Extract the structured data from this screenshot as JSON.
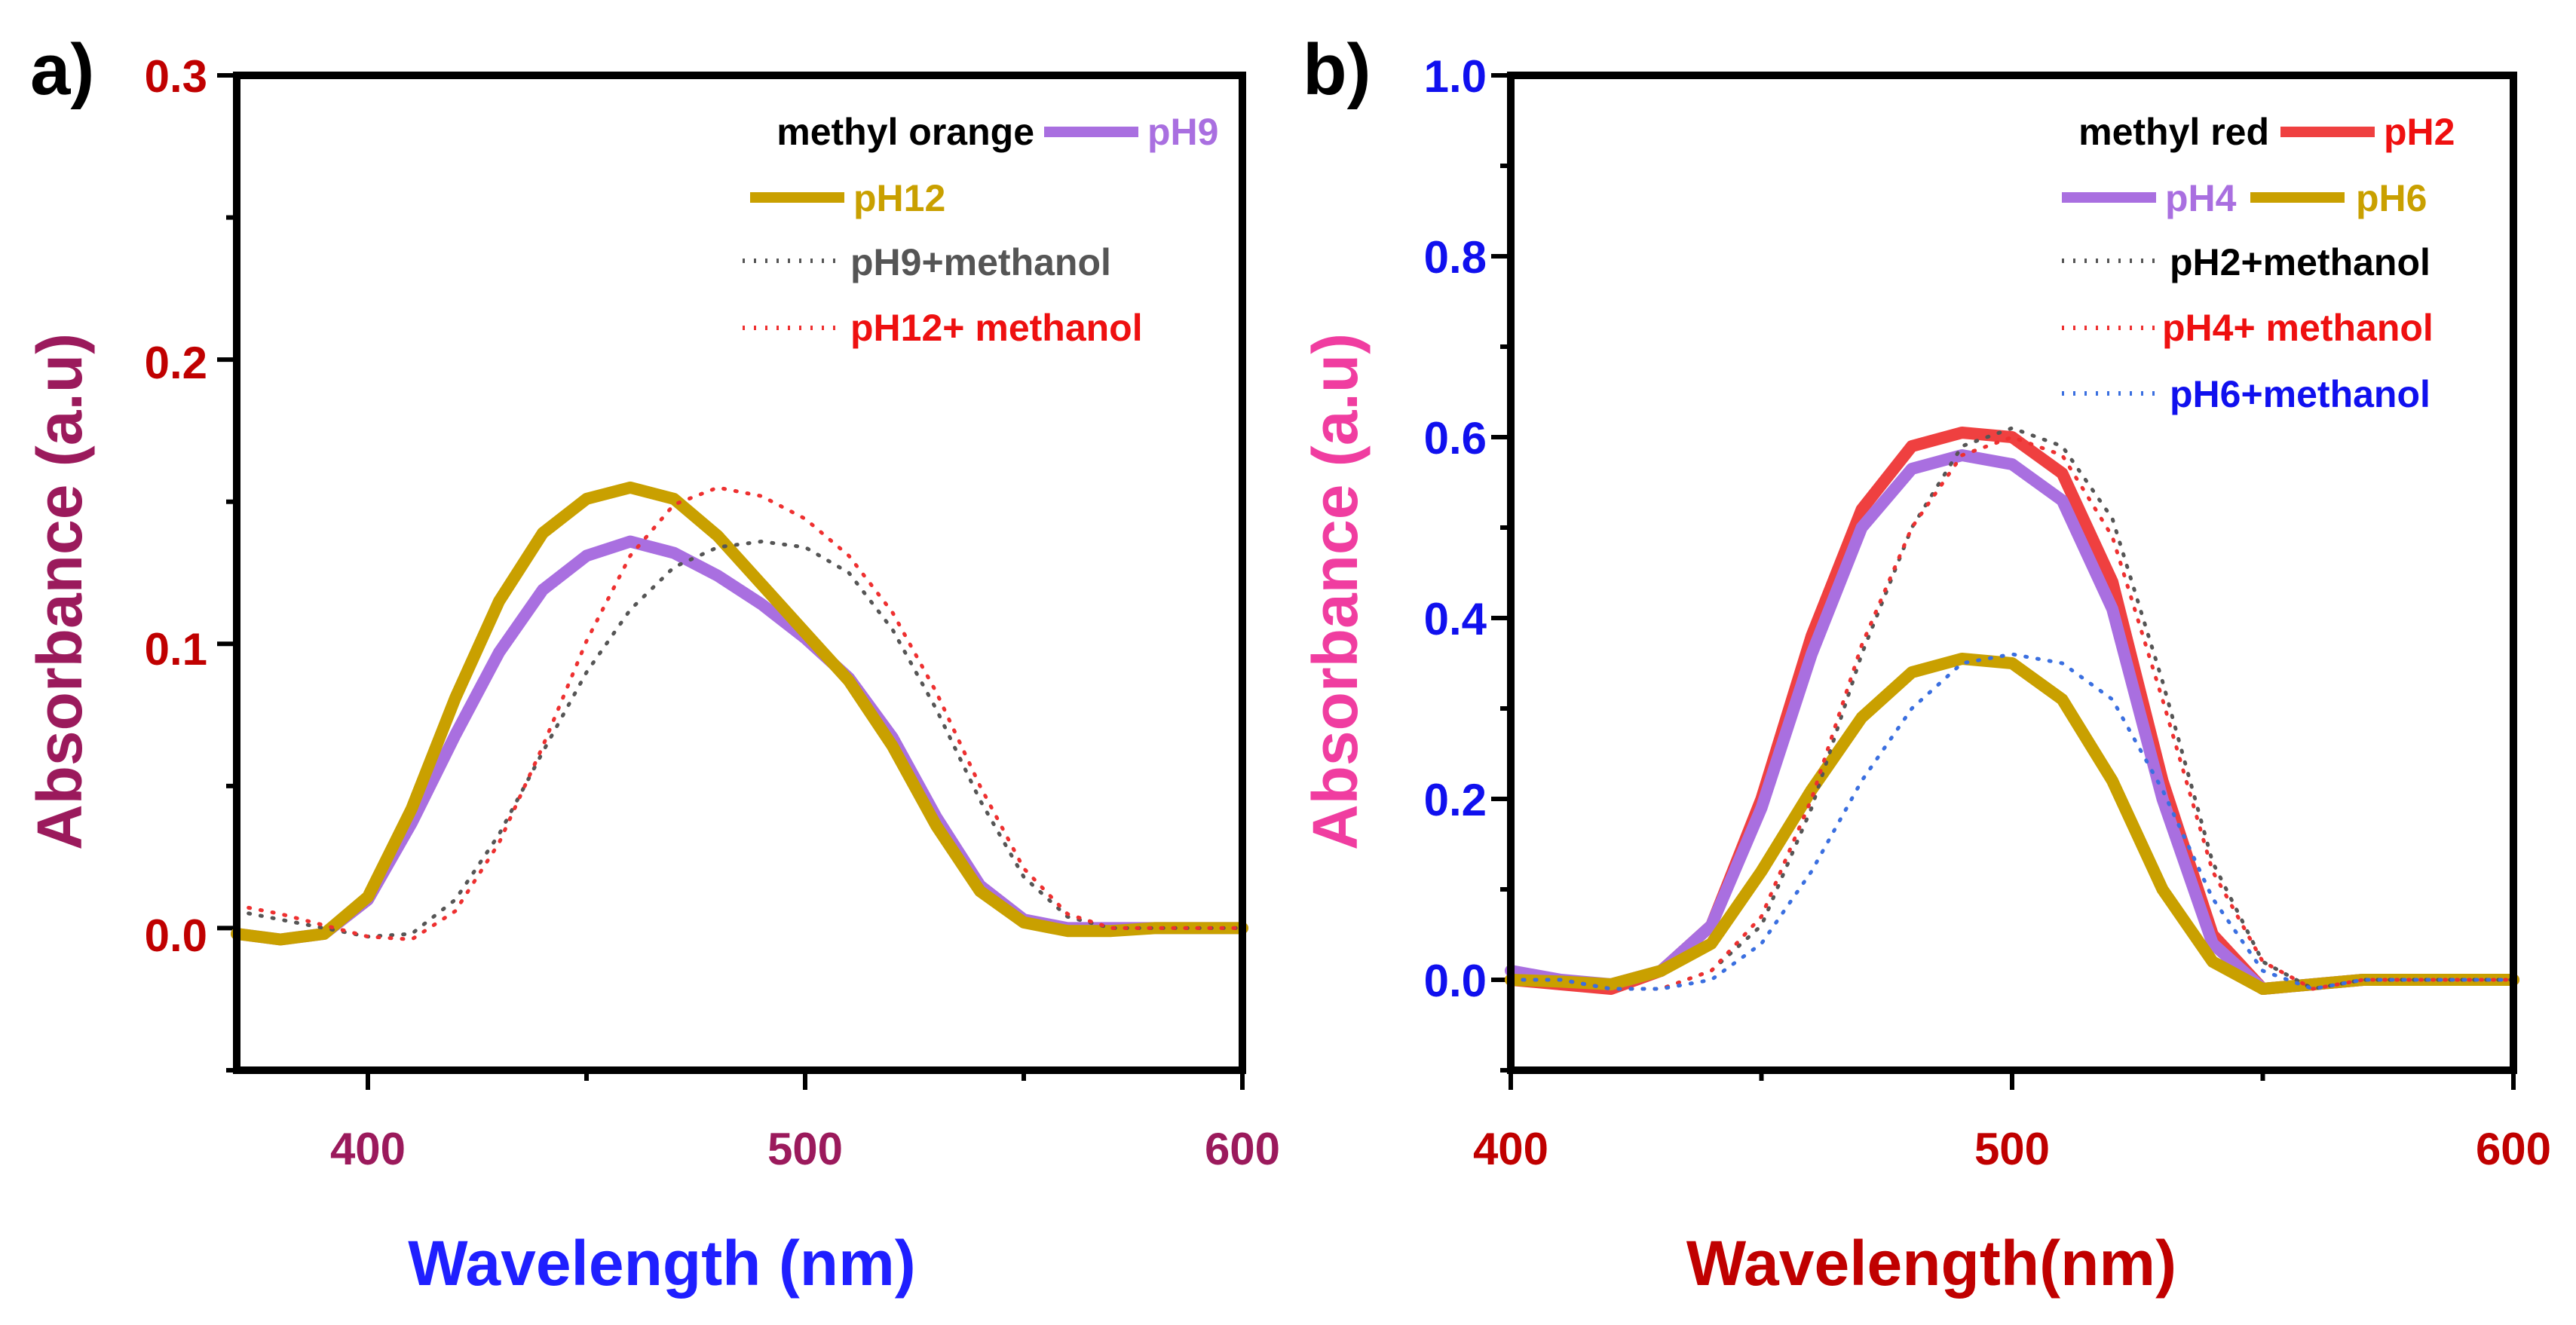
{
  "chart_data": [
    {
      "panel_label": "a)",
      "type": "line",
      "xlabel": "Wavelength (nm)",
      "ylabel": "Absorbance (a.u)",
      "xlim": [
        370,
        600
      ],
      "ylim": [
        -0.05,
        0.3
      ],
      "xticks": [
        400,
        500,
        600
      ],
      "xtick_labels": [
        "400",
        "500",
        "600"
      ],
      "yticks": [
        0.0,
        0.1,
        0.2,
        0.3
      ],
      "ytick_labels": [
        "0.0",
        "0.1",
        "0.2",
        "0.3"
      ],
      "grid": false,
      "legend_placement": "top-right",
      "legend_title": "methyl orange",
      "colors": {
        "xlabel": "#1f1fff",
        "ylabel": "#9b1a5c",
        "xticks": "#9b1a5c",
        "yticks": "#c00000"
      },
      "series": [
        {
          "name": "pH9",
          "color": "#a96fe0",
          "style": "solid",
          "x": [
            370,
            380,
            390,
            400,
            410,
            420,
            430,
            440,
            450,
            460,
            470,
            480,
            490,
            500,
            510,
            520,
            530,
            540,
            550,
            560,
            570,
            580,
            590,
            600
          ],
          "y": [
            -0.002,
            -0.004,
            -0.002,
            0.01,
            0.037,
            0.068,
            0.097,
            0.119,
            0.131,
            0.136,
            0.132,
            0.124,
            0.114,
            0.102,
            0.088,
            0.067,
            0.039,
            0.015,
            0.003,
            0.0,
            0.0,
            0.0,
            0.0,
            0.0
          ]
        },
        {
          "name": "pH12",
          "color": "#c9a000",
          "style": "solid",
          "x": [
            370,
            380,
            390,
            400,
            410,
            420,
            430,
            440,
            450,
            460,
            470,
            480,
            490,
            500,
            510,
            520,
            530,
            540,
            550,
            560,
            570,
            580,
            590,
            600
          ],
          "y": [
            -0.002,
            -0.004,
            -0.002,
            0.011,
            0.042,
            0.081,
            0.115,
            0.139,
            0.151,
            0.155,
            0.151,
            0.138,
            0.121,
            0.104,
            0.087,
            0.064,
            0.036,
            0.013,
            0.002,
            -0.001,
            -0.001,
            0.0,
            0.0,
            0.0
          ]
        },
        {
          "name": "pH9+methanol",
          "color": "#555555",
          "style": "dotted",
          "x": [
            370,
            380,
            390,
            400,
            410,
            420,
            430,
            440,
            450,
            460,
            470,
            480,
            490,
            500,
            510,
            520,
            530,
            540,
            550,
            560,
            570,
            580,
            590,
            600
          ],
          "y": [
            0.006,
            0.003,
            0.0,
            -0.003,
            -0.002,
            0.01,
            0.033,
            0.062,
            0.09,
            0.112,
            0.127,
            0.134,
            0.136,
            0.134,
            0.125,
            0.105,
            0.077,
            0.045,
            0.018,
            0.004,
            0.0,
            0.0,
            0.0,
            0.0
          ]
        },
        {
          "name": "pH12+ methanol",
          "color": "#ee3030",
          "style": "dotted",
          "x": [
            370,
            380,
            390,
            400,
            410,
            420,
            430,
            440,
            450,
            460,
            470,
            480,
            490,
            500,
            510,
            520,
            530,
            540,
            550,
            560,
            570,
            580,
            590,
            600
          ],
          "y": [
            0.008,
            0.005,
            0.001,
            -0.003,
            -0.004,
            0.006,
            0.03,
            0.064,
            0.101,
            0.131,
            0.149,
            0.155,
            0.152,
            0.144,
            0.131,
            0.111,
            0.083,
            0.05,
            0.021,
            0.005,
            0.0,
            0.0,
            0.0,
            0.0
          ]
        }
      ],
      "legend_labels": {
        "pH9": "pH9",
        "pH12": "pH12",
        "pH9m": "pH9+methanol",
        "pH12m": "pH12+ methanol"
      }
    },
    {
      "panel_label": "b)",
      "type": "line",
      "xlabel": "Wavelength(nm)",
      "ylabel": "Absorbance (a.u)",
      "xlim": [
        400,
        600
      ],
      "ylim": [
        -0.1,
        1.0
      ],
      "xticks": [
        400,
        500,
        600
      ],
      "xtick_labels": [
        "400",
        "500",
        "600"
      ],
      "yticks": [
        0.0,
        0.2,
        0.4,
        0.6,
        0.8,
        1.0
      ],
      "ytick_labels": [
        "0.0",
        "0.2",
        "0.4",
        "0.6",
        "0.8",
        "1.0"
      ],
      "grid": false,
      "legend_placement": "top-right",
      "legend_title": "methyl red",
      "colors": {
        "xlabel": "#c00000",
        "ylabel": "#f03da0",
        "xticks": "#c00000",
        "yticks": "#1010ee"
      },
      "series": [
        {
          "name": "pH2",
          "color": "#ef4040",
          "style": "solid",
          "x": [
            400,
            410,
            420,
            430,
            440,
            450,
            460,
            470,
            480,
            490,
            500,
            510,
            520,
            530,
            540,
            550,
            560,
            570,
            580,
            590,
            600
          ],
          "y": [
            0.0,
            -0.005,
            -0.01,
            0.01,
            0.06,
            0.2,
            0.38,
            0.52,
            0.59,
            0.605,
            0.6,
            0.56,
            0.44,
            0.22,
            0.05,
            -0.01,
            -0.005,
            0.0,
            0.0,
            0.0,
            0.0
          ]
        },
        {
          "name": "pH4",
          "color": "#a96fe0",
          "style": "solid",
          "x": [
            400,
            410,
            420,
            430,
            440,
            450,
            460,
            470,
            480,
            490,
            500,
            510,
            520,
            530,
            540,
            550,
            560,
            570,
            580,
            590,
            600
          ],
          "y": [
            0.01,
            0.0,
            -0.005,
            0.01,
            0.06,
            0.19,
            0.36,
            0.5,
            0.565,
            0.58,
            0.57,
            0.53,
            0.41,
            0.2,
            0.04,
            -0.01,
            -0.005,
            0.0,
            0.0,
            0.0,
            0.0
          ]
        },
        {
          "name": "pH6",
          "color": "#c9a000",
          "style": "solid",
          "x": [
            400,
            410,
            420,
            430,
            440,
            450,
            460,
            470,
            480,
            490,
            500,
            510,
            520,
            530,
            540,
            550,
            560,
            570,
            580,
            590,
            600
          ],
          "y": [
            0.0,
            -0.002,
            -0.005,
            0.01,
            0.04,
            0.12,
            0.21,
            0.29,
            0.34,
            0.355,
            0.35,
            0.31,
            0.22,
            0.1,
            0.02,
            -0.01,
            -0.005,
            0.0,
            0.0,
            0.0,
            0.0
          ]
        },
        {
          "name": "pH2+methanol",
          "color": "#555555",
          "style": "dotted",
          "x": [
            400,
            410,
            420,
            430,
            440,
            450,
            460,
            470,
            480,
            490,
            500,
            510,
            520,
            530,
            540,
            550,
            560,
            570,
            580,
            590,
            600
          ],
          "y": [
            0.0,
            0.0,
            -0.01,
            -0.01,
            0.01,
            0.06,
            0.19,
            0.36,
            0.5,
            0.59,
            0.61,
            0.59,
            0.51,
            0.33,
            0.13,
            0.02,
            -0.01,
            0.0,
            0.0,
            0.0,
            0.0
          ]
        },
        {
          "name": "pH4+ methanol",
          "color": "#ee3030",
          "style": "dotted",
          "x": [
            400,
            410,
            420,
            430,
            440,
            450,
            460,
            470,
            480,
            490,
            500,
            510,
            520,
            530,
            540,
            550,
            560,
            570,
            580,
            590,
            600
          ],
          "y": [
            0.0,
            0.0,
            -0.01,
            -0.01,
            0.01,
            0.07,
            0.2,
            0.37,
            0.5,
            0.58,
            0.6,
            0.58,
            0.49,
            0.31,
            0.12,
            0.02,
            -0.01,
            0.0,
            0.0,
            0.0,
            0.0
          ]
        },
        {
          "name": "pH6+methanol",
          "color": "#3a6fe0",
          "style": "dotted",
          "x": [
            400,
            410,
            420,
            430,
            440,
            450,
            460,
            470,
            480,
            490,
            500,
            510,
            520,
            530,
            540,
            550,
            560,
            570,
            580,
            590,
            600
          ],
          "y": [
            0.0,
            0.0,
            -0.01,
            -0.01,
            0.0,
            0.04,
            0.12,
            0.22,
            0.3,
            0.35,
            0.36,
            0.35,
            0.31,
            0.21,
            0.09,
            0.01,
            -0.01,
            0.0,
            0.0,
            0.0,
            0.0
          ]
        }
      ],
      "legend_labels": {
        "pH2": "pH2",
        "pH4": "pH4",
        "pH6": "pH6",
        "pH2m": "pH2+methanol",
        "pH4m": "pH4+ methanol",
        "pH6m": "pH6+methanol"
      }
    }
  ]
}
